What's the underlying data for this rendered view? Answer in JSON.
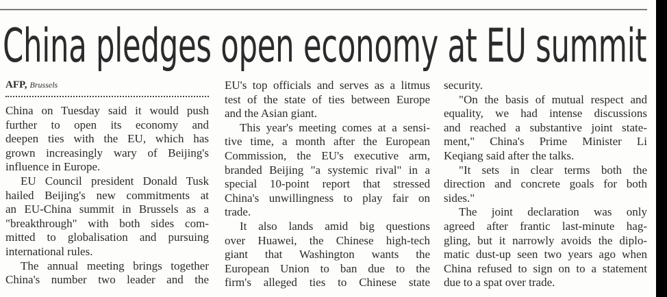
{
  "headline": "China pledges open economy at EU summit",
  "byline": {
    "agency": "AFP,",
    "place": "Brussels"
  },
  "columns": [
    [
      {
        "lines": [
          "China on Tuesday said it would push",
          "further to open its economy and",
          "deepen ties with the EU, which has",
          "grown increasingly wary of Beijing's",
          "influence in Europe."
        ],
        "indent": false,
        "ends": true
      },
      {
        "lines": [
          "EU Council president Donald Tusk",
          "hailed Beijing's new commitments at",
          "an EU-China summit in Brussels as a",
          "\"breakthrough\" with both sides com-",
          "mitted to globalisation and pursuing",
          "international rules."
        ],
        "indent": true,
        "ends": true
      },
      {
        "lines": [
          "The annual meeting brings together",
          "China's number two leader and the"
        ],
        "indent": true,
        "ends": false
      }
    ],
    [
      {
        "lines": [
          "EU's top officials and serves as a litmus",
          "test of the state of ties between Europe",
          "and the Asian giant."
        ],
        "indent": false,
        "ends": true
      },
      {
        "lines": [
          "This year's meeting comes at a sensi-",
          "tive time, a month after the European",
          "Commission, the EU's executive arm,",
          "branded Beijing \"a systemic rival\" in a",
          "special 10-point report that stressed",
          "China's unwillingness to play fair on",
          "trade."
        ],
        "indent": true,
        "ends": true
      },
      {
        "lines": [
          "It also lands amid big questions",
          "over Huawei, the Chinese high-tech",
          "giant that Washington wants the",
          "European Union to ban due to the",
          "firm's alleged ties to Chinese state"
        ],
        "indent": true,
        "ends": false
      }
    ],
    [
      {
        "lines": [
          "security."
        ],
        "indent": false,
        "ends": true
      },
      {
        "lines": [
          "\"On the basis of mutual respect and",
          "equality, we had intense discussions",
          "and reached a substantive joint state-",
          "ment,\" China's Prime Minister Li",
          "Keqiang said after the talks."
        ],
        "indent": true,
        "ends": true
      },
      {
        "lines": [
          "\"It sets in clear terms both the",
          "direction and concrete goals for both",
          "sides.\""
        ],
        "indent": true,
        "ends": true
      },
      {
        "lines": [
          "The joint declaration was only",
          "agreed after frantic last-minute hag-",
          "gling, but it narrowly avoids the diplo-",
          "matic dust-up seen two years ago when",
          "China refused to sign on to a statement",
          "due to a spat over trade."
        ],
        "indent": true,
        "ends": true
      }
    ]
  ]
}
